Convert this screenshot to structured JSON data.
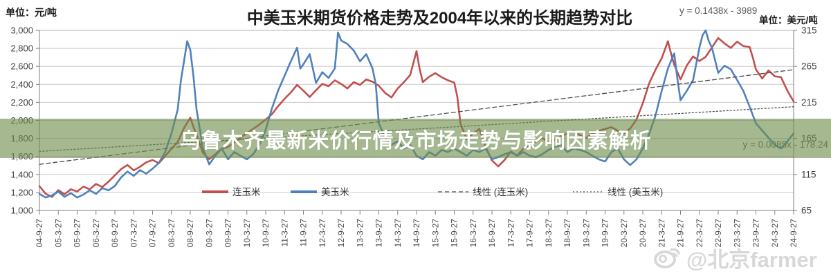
{
  "header": {
    "unit_left": "单位：元/吨",
    "title": "中美玉米期货价格走势及2004年以来的长期趋势对比",
    "unit_right": "单位：美元/吨"
  },
  "equations": {
    "lian_trend": "y = 0.1438x - 3989",
    "mei_trend": "y = 0.0085x - 178.24"
  },
  "overlay_banner": {
    "text": "乌鲁木齐最新米价行情及市场走势与影响因素解析",
    "bg_color": "#6E8C4B"
  },
  "watermark": {
    "icon": "weibo-icon",
    "text": "@北京farmer",
    "color": "#d6d6d6"
  },
  "chart_data": {
    "type": "line",
    "title": "中美玉米期货价格走势及2004年以来的长期趋势对比",
    "grid": "horizontal-only",
    "legend_position": "bottom-inside",
    "y_left": {
      "label": "元/吨",
      "min": 1000,
      "max": 3000,
      "ticks": [
        "3,000",
        "2,800",
        "2,600",
        "2,400",
        "2,200",
        "2,000",
        "1,800",
        "1,600",
        "1,400",
        "1,200",
        "1,000"
      ]
    },
    "y_right": {
      "label": "美元/吨",
      "min": 65,
      "max": 315,
      "ticks": [
        "315",
        "265",
        "215",
        "165",
        "115",
        "65"
      ]
    },
    "x_unit": "months since 2004-09",
    "x_ticks": [
      "04-9-27",
      "05-3-27",
      "05-9-27",
      "06-3-27",
      "06-9-27",
      "07-3-27",
      "07-9-27",
      "08-3-27",
      "08-9-27",
      "09-3-27",
      "09-9-27",
      "10-3-27",
      "10-9-27",
      "11-3-27",
      "11-9-27",
      "12-3-27",
      "12-9-27",
      "13-3-27",
      "13-9-27",
      "14-3-27",
      "14-9-27",
      "15-3-27",
      "15-9-27",
      "16-3-27",
      "16-9-27",
      "17-3-27",
      "17-9-27",
      "18-3-27",
      "18-9-27",
      "19-3-27",
      "19-9-27",
      "20-3-27",
      "20-9-27",
      "21-3-27",
      "21-9-27",
      "22-3-27",
      "22-9-27",
      "23-3-27",
      "23-9-27",
      "24-3-27",
      "24-9-27"
    ],
    "series": [
      {
        "name": "连玉米",
        "axis": "left",
        "color": "#C0504D",
        "style": "solid",
        "width": 2.6,
        "points": [
          [
            0,
            1270
          ],
          [
            2,
            1185
          ],
          [
            4,
            1150
          ],
          [
            6,
            1225
          ],
          [
            8,
            1180
          ],
          [
            10,
            1235
          ],
          [
            12,
            1210
          ],
          [
            14,
            1265
          ],
          [
            16,
            1235
          ],
          [
            18,
            1295
          ],
          [
            20,
            1260
          ],
          [
            22,
            1320
          ],
          [
            24,
            1390
          ],
          [
            26,
            1460
          ],
          [
            28,
            1505
          ],
          [
            30,
            1445
          ],
          [
            32,
            1485
          ],
          [
            34,
            1535
          ],
          [
            36,
            1560
          ],
          [
            38,
            1525
          ],
          [
            40,
            1605
          ],
          [
            42,
            1685
          ],
          [
            44,
            1760
          ],
          [
            46,
            1915
          ],
          [
            48,
            2030
          ],
          [
            49,
            1930
          ],
          [
            50,
            1840
          ],
          [
            52,
            1640
          ],
          [
            54,
            1570
          ],
          [
            56,
            1625
          ],
          [
            58,
            1685
          ],
          [
            60,
            1705
          ],
          [
            62,
            1755
          ],
          [
            64,
            1810
          ],
          [
            66,
            1860
          ],
          [
            68,
            1905
          ],
          [
            70,
            1955
          ],
          [
            72,
            2010
          ],
          [
            74,
            2070
          ],
          [
            76,
            2160
          ],
          [
            78,
            2240
          ],
          [
            80,
            2310
          ],
          [
            82,
            2395
          ],
          [
            84,
            2330
          ],
          [
            86,
            2260
          ],
          [
            88,
            2335
          ],
          [
            90,
            2405
          ],
          [
            92,
            2380
          ],
          [
            94,
            2445
          ],
          [
            96,
            2405
          ],
          [
            98,
            2355
          ],
          [
            100,
            2425
          ],
          [
            102,
            2395
          ],
          [
            104,
            2455
          ],
          [
            106,
            2430
          ],
          [
            108,
            2385
          ],
          [
            110,
            2305
          ],
          [
            112,
            2255
          ],
          [
            114,
            2355
          ],
          [
            116,
            2425
          ],
          [
            118,
            2505
          ],
          [
            119,
            2640
          ],
          [
            120,
            2770
          ],
          [
            121,
            2570
          ],
          [
            122,
            2425
          ],
          [
            124,
            2485
          ],
          [
            126,
            2525
          ],
          [
            128,
            2480
          ],
          [
            130,
            2445
          ],
          [
            132,
            2420
          ],
          [
            133,
            2260
          ],
          [
            134,
            1960
          ],
          [
            136,
            1790
          ],
          [
            138,
            1855
          ],
          [
            140,
            1905
          ],
          [
            142,
            1705
          ],
          [
            144,
            1555
          ],
          [
            146,
            1490
          ],
          [
            148,
            1560
          ],
          [
            150,
            1655
          ],
          [
            152,
            1610
          ],
          [
            154,
            1685
          ],
          [
            156,
            1725
          ],
          [
            158,
            1765
          ],
          [
            160,
            1805
          ],
          [
            162,
            1755
          ],
          [
            164,
            1785
          ],
          [
            166,
            1825
          ],
          [
            168,
            1855
          ],
          [
            170,
            1885
          ],
          [
            172,
            1835
          ],
          [
            174,
            1805
          ],
          [
            176,
            1855
          ],
          [
            178,
            1885
          ],
          [
            180,
            1905
          ],
          [
            182,
            1925
          ],
          [
            184,
            1885
          ],
          [
            186,
            1855
          ],
          [
            188,
            1910
          ],
          [
            190,
            2010
          ],
          [
            192,
            2190
          ],
          [
            194,
            2410
          ],
          [
            196,
            2560
          ],
          [
            198,
            2690
          ],
          [
            200,
            2880
          ],
          [
            201,
            2740
          ],
          [
            202,
            2620
          ],
          [
            204,
            2455
          ],
          [
            206,
            2610
          ],
          [
            208,
            2710
          ],
          [
            210,
            2660
          ],
          [
            212,
            2705
          ],
          [
            214,
            2810
          ],
          [
            216,
            2915
          ],
          [
            218,
            2855
          ],
          [
            220,
            2805
          ],
          [
            222,
            2875
          ],
          [
            224,
            2825
          ],
          [
            226,
            2815
          ],
          [
            227,
            2700
          ],
          [
            228,
            2565
          ],
          [
            230,
            2465
          ],
          [
            232,
            2555
          ],
          [
            234,
            2490
          ],
          [
            236,
            2480
          ],
          [
            238,
            2330
          ],
          [
            240,
            2210
          ]
        ]
      },
      {
        "name": "美玉米",
        "axis": "right",
        "color": "#4F81BD",
        "style": "solid",
        "width": 2.6,
        "points": [
          [
            0,
            88
          ],
          [
            2,
            83
          ],
          [
            4,
            86
          ],
          [
            6,
            91
          ],
          [
            8,
            84
          ],
          [
            10,
            89
          ],
          [
            12,
            83
          ],
          [
            14,
            87
          ],
          [
            16,
            93
          ],
          [
            18,
            88
          ],
          [
            20,
            96
          ],
          [
            22,
            93
          ],
          [
            24,
            99
          ],
          [
            26,
            111
          ],
          [
            28,
            119
          ],
          [
            30,
            113
          ],
          [
            32,
            121
          ],
          [
            34,
            116
          ],
          [
            36,
            123
          ],
          [
            38,
            131
          ],
          [
            40,
            146
          ],
          [
            42,
            172
          ],
          [
            44,
            205
          ],
          [
            45,
            245
          ],
          [
            46,
            272
          ],
          [
            47,
            300
          ],
          [
            48,
            288
          ],
          [
            49,
            252
          ],
          [
            50,
            205
          ],
          [
            52,
            152
          ],
          [
            54,
            129
          ],
          [
            56,
            141
          ],
          [
            58,
            151
          ],
          [
            60,
            136
          ],
          [
            62,
            146
          ],
          [
            64,
            141
          ],
          [
            66,
            136
          ],
          [
            68,
            143
          ],
          [
            70,
            156
          ],
          [
            72,
            177
          ],
          [
            74,
            207
          ],
          [
            76,
            232
          ],
          [
            78,
            252
          ],
          [
            80,
            272
          ],
          [
            82,
            291
          ],
          [
            83,
            262
          ],
          [
            84,
            268
          ],
          [
            86,
            282
          ],
          [
            88,
            242
          ],
          [
            90,
            257
          ],
          [
            92,
            249
          ],
          [
            94,
            262
          ],
          [
            95,
            312
          ],
          [
            96,
            301
          ],
          [
            98,
            296
          ],
          [
            100,
            287
          ],
          [
            102,
            272
          ],
          [
            104,
            282
          ],
          [
            106,
            262
          ],
          [
            107,
            241
          ],
          [
            108,
            186
          ],
          [
            110,
            166
          ],
          [
            112,
            156
          ],
          [
            114,
            161
          ],
          [
            116,
            151
          ],
          [
            118,
            156
          ],
          [
            120,
            141
          ],
          [
            122,
            136
          ],
          [
            124,
            146
          ],
          [
            126,
            141
          ],
          [
            128,
            149
          ],
          [
            130,
            146
          ],
          [
            132,
            151
          ],
          [
            134,
            146
          ],
          [
            136,
            141
          ],
          [
            138,
            149
          ],
          [
            140,
            146
          ],
          [
            142,
            151
          ],
          [
            144,
            136
          ],
          [
            146,
            139
          ],
          [
            148,
            143
          ],
          [
            150,
            146
          ],
          [
            152,
            141
          ],
          [
            154,
            146
          ],
          [
            156,
            141
          ],
          [
            158,
            139
          ],
          [
            160,
            143
          ],
          [
            162,
            149
          ],
          [
            164,
            153
          ],
          [
            166,
            156
          ],
          [
            168,
            146
          ],
          [
            170,
            151
          ],
          [
            172,
            149
          ],
          [
            174,
            146
          ],
          [
            176,
            141
          ],
          [
            178,
            136
          ],
          [
            180,
            133
          ],
          [
            182,
            146
          ],
          [
            184,
            151
          ],
          [
            186,
            136
          ],
          [
            188,
            128
          ],
          [
            190,
            136
          ],
          [
            192,
            151
          ],
          [
            194,
            171
          ],
          [
            196,
            196
          ],
          [
            198,
            231
          ],
          [
            200,
            262
          ],
          [
            202,
            283
          ],
          [
            203,
            248
          ],
          [
            204,
            218
          ],
          [
            206,
            231
          ],
          [
            208,
            246
          ],
          [
            210,
            291
          ],
          [
            211,
            308
          ],
          [
            212,
            315
          ],
          [
            213,
            300
          ],
          [
            214,
            291
          ],
          [
            216,
            256
          ],
          [
            218,
            266
          ],
          [
            220,
            261
          ],
          [
            222,
            246
          ],
          [
            224,
            231
          ],
          [
            226,
            209
          ],
          [
            228,
            186
          ],
          [
            230,
            176
          ],
          [
            232,
            166
          ],
          [
            234,
            156
          ],
          [
            236,
            151
          ],
          [
            238,
            161
          ],
          [
            240,
            172
          ]
        ]
      },
      {
        "name": "线性 (连玉米)",
        "axis": "left",
        "color": "#4d4d4d",
        "style": "dashed",
        "width": 1.3,
        "equation": "y = 0.1438x - 3989",
        "points": [
          [
            0,
            1512
          ],
          [
            240,
            2563
          ]
        ]
      },
      {
        "name": "线性 (美玉米)",
        "axis": "right",
        "color": "#4d4d4d",
        "style": "dotted",
        "width": 1.3,
        "equation": "y = 0.0085x - 178.24",
        "points": [
          [
            0,
            147
          ],
          [
            240,
            209
          ]
        ]
      }
    ]
  }
}
